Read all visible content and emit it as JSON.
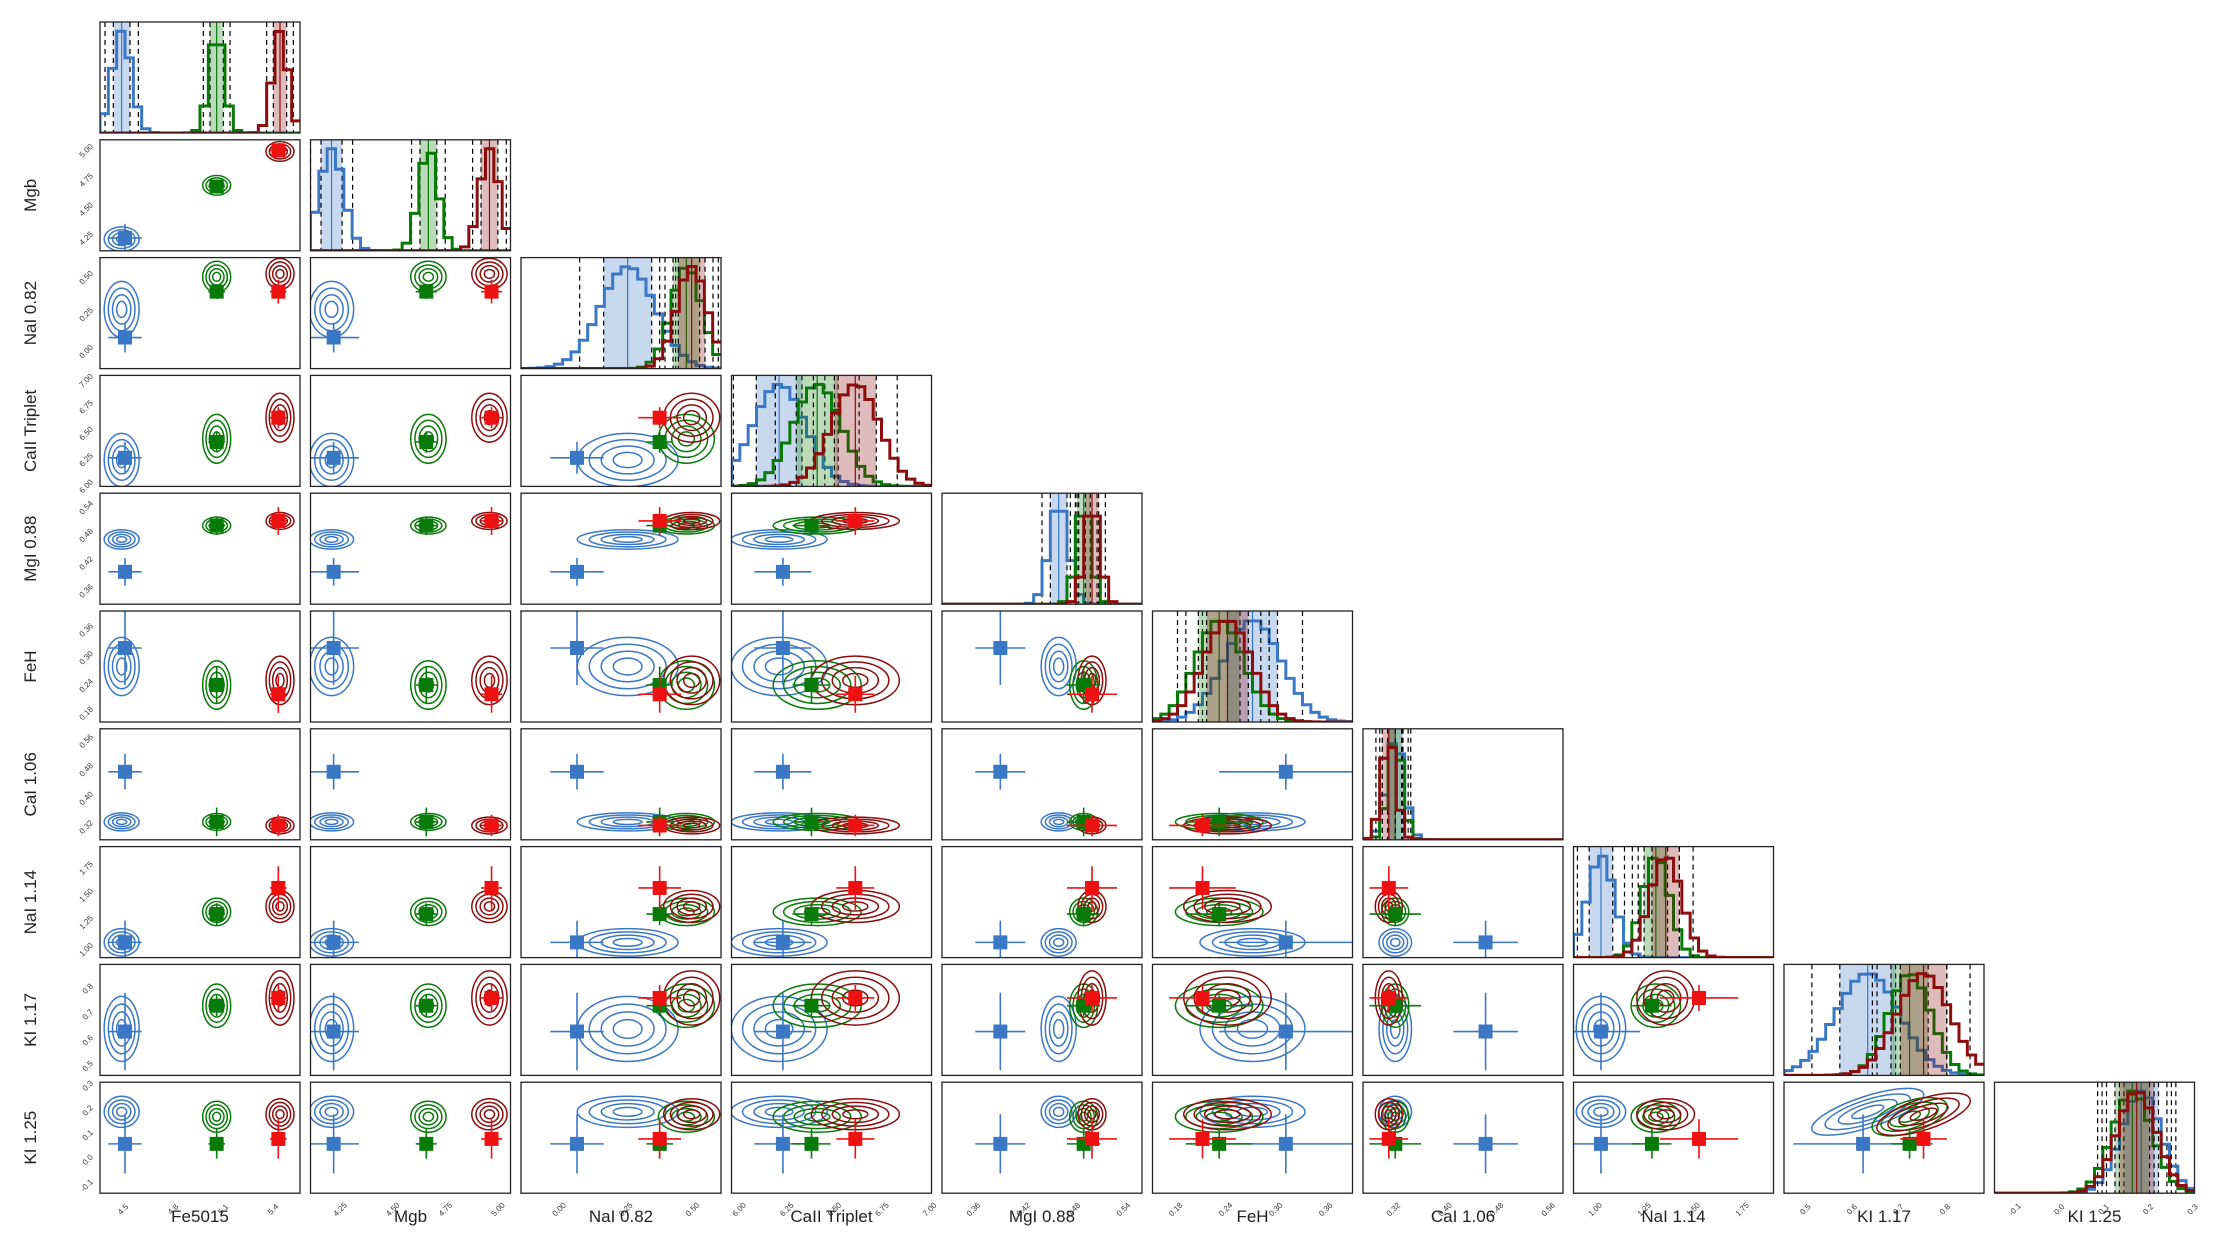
{
  "chart_data": {
    "type": "corner",
    "title": "",
    "parameters": [
      {
        "label": "Fe5015",
        "range": [
          4.35,
          5.55
        ],
        "ticks": [
          "4.5",
          "4.8",
          "5.1",
          "5.4"
        ]
      },
      {
        "label": "Mgb",
        "range": [
          4.1,
          5.05
        ],
        "ticks": [
          "4.25",
          "4.50",
          "4.75",
          "5.00"
        ]
      },
      {
        "label": "NaI 0.82",
        "range": [
          -0.15,
          0.6
        ],
        "ticks": [
          "0.00",
          "0.25",
          "0.50"
        ]
      },
      {
        "label": "CaII Triplet",
        "range": [
          5.95,
          7.0
        ],
        "ticks": [
          "6.00",
          "6.25",
          "6.50",
          "6.75",
          "7.00"
        ]
      },
      {
        "label": "MgI 0.88",
        "range": [
          0.32,
          0.56
        ],
        "ticks": [
          "0.36",
          "0.42",
          "0.48",
          "0.54"
        ]
      },
      {
        "label": "FeH",
        "range": [
          0.15,
          0.39
        ],
        "ticks": [
          "0.18",
          "0.24",
          "0.30",
          "0.36"
        ]
      },
      {
        "label": "CaI 1.06",
        "range": [
          0.27,
          0.58
        ],
        "ticks": [
          "0.32",
          "0.40",
          "0.48",
          "0.56"
        ]
      },
      {
        "label": "NaI 1.14",
        "range": [
          0.88,
          1.9
        ],
        "ticks": [
          "1.00",
          "1.25",
          "1.50",
          "1.75"
        ]
      },
      {
        "label": "KI 1.17",
        "range": [
          0.45,
          0.88
        ],
        "ticks": [
          "0.5",
          "0.6",
          "0.7",
          "0.8"
        ]
      },
      {
        "label": "KI 1.25",
        "range": [
          -0.15,
          0.3
        ],
        "ticks": [
          "-0.1",
          "0.0",
          "0.1",
          "0.2",
          "0.3"
        ]
      }
    ],
    "series": [
      {
        "name": "blue",
        "color": "#3a78c5",
        "points_color": "#3a78c5",
        "posterior_mean": [
          4.48,
          4.2,
          0.25,
          6.2,
          0.46,
          0.27,
          0.32,
          1.02,
          0.63,
          0.18
        ],
        "posterior_sd": [
          0.05,
          0.05,
          0.09,
          0.12,
          0.01,
          0.03,
          0.012,
          0.06,
          0.06,
          0.03
        ],
        "measured": [
          4.5,
          4.21,
          0.06,
          6.22,
          0.39,
          0.31,
          0.46,
          1.02,
          0.62,
          0.05
        ],
        "measured_err": [
          0.1,
          0.12,
          0.1,
          0.15,
          0.03,
          0.08,
          0.05,
          0.2,
          0.15,
          0.12
        ],
        "hist_band": [
          4.37,
          4.55
        ]
      },
      {
        "name": "green",
        "color": "#087a08",
        "points_color": "#087a08",
        "posterior_mean": [
          5.05,
          4.66,
          0.47,
          6.4,
          0.49,
          0.23,
          0.32,
          1.3,
          0.72,
          0.16
        ],
        "posterior_sd": [
          0.04,
          0.04,
          0.05,
          0.11,
          0.008,
          0.025,
          0.01,
          0.06,
          0.04,
          0.03
        ],
        "measured": [
          5.05,
          4.65,
          0.37,
          6.37,
          0.49,
          0.23,
          0.32,
          1.28,
          0.72,
          0.05
        ],
        "measured_err": [
          0.05,
          0.05,
          0.05,
          0.1,
          0.02,
          0.04,
          0.04,
          0.1,
          0.04,
          0.06
        ],
        "hist_band": [
          4.98,
          5.12
        ]
      },
      {
        "name": "red",
        "color": "#8b0d0d",
        "points_color": "#ee1111",
        "posterior_mean": [
          5.43,
          4.95,
          0.49,
          6.6,
          0.5,
          0.24,
          0.31,
          1.35,
          0.75,
          0.17
        ],
        "posterior_sd": [
          0.04,
          0.04,
          0.05,
          0.11,
          0.008,
          0.025,
          0.01,
          0.07,
          0.05,
          0.03
        ],
        "measured": [
          5.42,
          4.96,
          0.37,
          6.6,
          0.5,
          0.21,
          0.31,
          1.52,
          0.75,
          0.07
        ],
        "measured_err": [
          0.05,
          0.05,
          0.08,
          0.1,
          0.03,
          0.04,
          0.03,
          0.2,
          0.05,
          0.08
        ],
        "hist_band": [
          5.36,
          5.5
        ]
      }
    ],
    "grid": false,
    "layout": "lower-triangle 10x10"
  }
}
